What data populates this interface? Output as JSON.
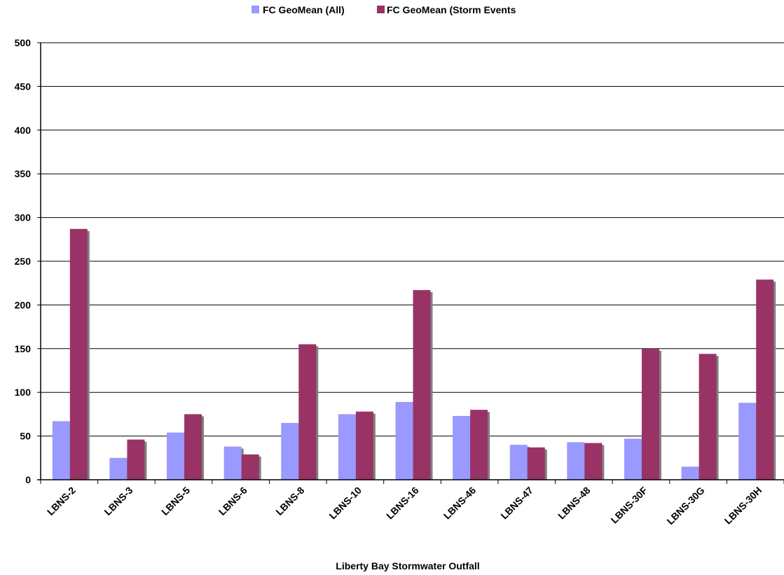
{
  "chart_data": {
    "type": "bar",
    "title": "",
    "xlabel": "Liberty Bay Stormwater Outfall",
    "ylabel": "",
    "ylim": [
      0,
      500
    ],
    "yticks": [
      0,
      50,
      100,
      150,
      200,
      250,
      300,
      350,
      400,
      450,
      500
    ],
    "grid": true,
    "legend_position": "top",
    "categories": [
      "LBNS-2",
      "LBNS-3",
      "LBNS-5",
      "LBNS-6",
      "LBNS-8",
      "LBNS-10",
      "LBNS-16",
      "LBNS-46",
      "LBNS-47",
      "LBNS-48",
      "LBNS-30F",
      "LBNS-30G",
      "LBNS-30H"
    ],
    "series": [
      {
        "name": "FC GeoMean (All)",
        "color": "#9999ff",
        "values": [
          67,
          25,
          54,
          38,
          65,
          75,
          89,
          73,
          40,
          43,
          47,
          15,
          88
        ]
      },
      {
        "name": "FC GeoMean (Storm Events",
        "color": "#993366",
        "values": [
          287,
          46,
          75,
          29,
          155,
          78,
          217,
          80,
          37,
          42,
          150,
          144,
          229
        ]
      }
    ]
  }
}
